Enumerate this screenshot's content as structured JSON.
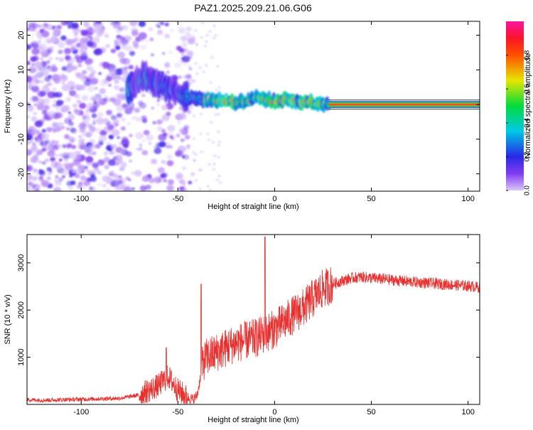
{
  "title": "PAZ1.2025.209.21.06.G06",
  "chart_data": [
    {
      "type": "heatmap",
      "xlabel": "Height of straight line (km)",
      "ylabel": "Frequency (Hz)",
      "xlim": [
        -128,
        106
      ],
      "ylim": [
        -25,
        24
      ],
      "xticks": [
        -100,
        -50,
        0,
        50,
        100
      ],
      "yticks": [
        -20,
        -10,
        0,
        10,
        20
      ],
      "colorbar": {
        "label": "Normalized spectral amplitude",
        "range": [
          0,
          1
        ],
        "ticks": [
          0.0,
          0.2,
          0.4,
          0.6,
          0.8
        ],
        "colormap": "rainbow"
      },
      "ridge": {
        "x": [
          -75,
          -68,
          -60,
          -52,
          -47,
          -42,
          -37,
          -30,
          -25,
          -20,
          -15,
          -10,
          -5,
          0,
          5,
          10,
          15,
          20,
          25,
          30,
          60,
          106
        ],
        "y": [
          5,
          8,
          6,
          4,
          2,
          1.5,
          1.5,
          1,
          1.2,
          0.5,
          1,
          2,
          1.5,
          1,
          1.5,
          1,
          0.5,
          0.5,
          0,
          0,
          0,
          0
        ]
      },
      "grid": false
    },
    {
      "type": "line",
      "xlabel": "Height of straight line (km)",
      "ylabel": "SNR (10 * v/v)",
      "xlim": [
        -128,
        106
      ],
      "ylim": [
        0,
        3600
      ],
      "xticks": [
        -100,
        -50,
        0,
        50,
        100
      ],
      "yticks": [
        1000,
        2000,
        3000
      ],
      "color": "#e8302e",
      "grid": false,
      "series": [
        {
          "x": [
            -128,
            -120,
            -110,
            -100,
            -90,
            -80,
            -70,
            -60,
            -55,
            -50,
            -45,
            -42,
            -40,
            -37,
            -35,
            -30,
            -25,
            -20,
            -15,
            -10,
            -5,
            0,
            5,
            10,
            15,
            20,
            25,
            30,
            35,
            40,
            45,
            50,
            55,
            60,
            70,
            80,
            90,
            100,
            106
          ],
          "y": [
            100,
            90,
            100,
            110,
            120,
            130,
            200,
            400,
            600,
            300,
            150,
            100,
            200,
            900,
            1000,
            1100,
            1200,
            1300,
            1350,
            1400,
            1500,
            1600,
            1750,
            1900,
            2050,
            2250,
            2450,
            2550,
            2620,
            2680,
            2700,
            2680,
            2660,
            2640,
            2600,
            2570,
            2540,
            2510,
            2480
          ]
        }
      ],
      "spikes": [
        {
          "x": -38,
          "y": 2550
        },
        {
          "x": -5,
          "y": 3550
        },
        {
          "x": -56,
          "y": 1200
        }
      ]
    }
  ]
}
